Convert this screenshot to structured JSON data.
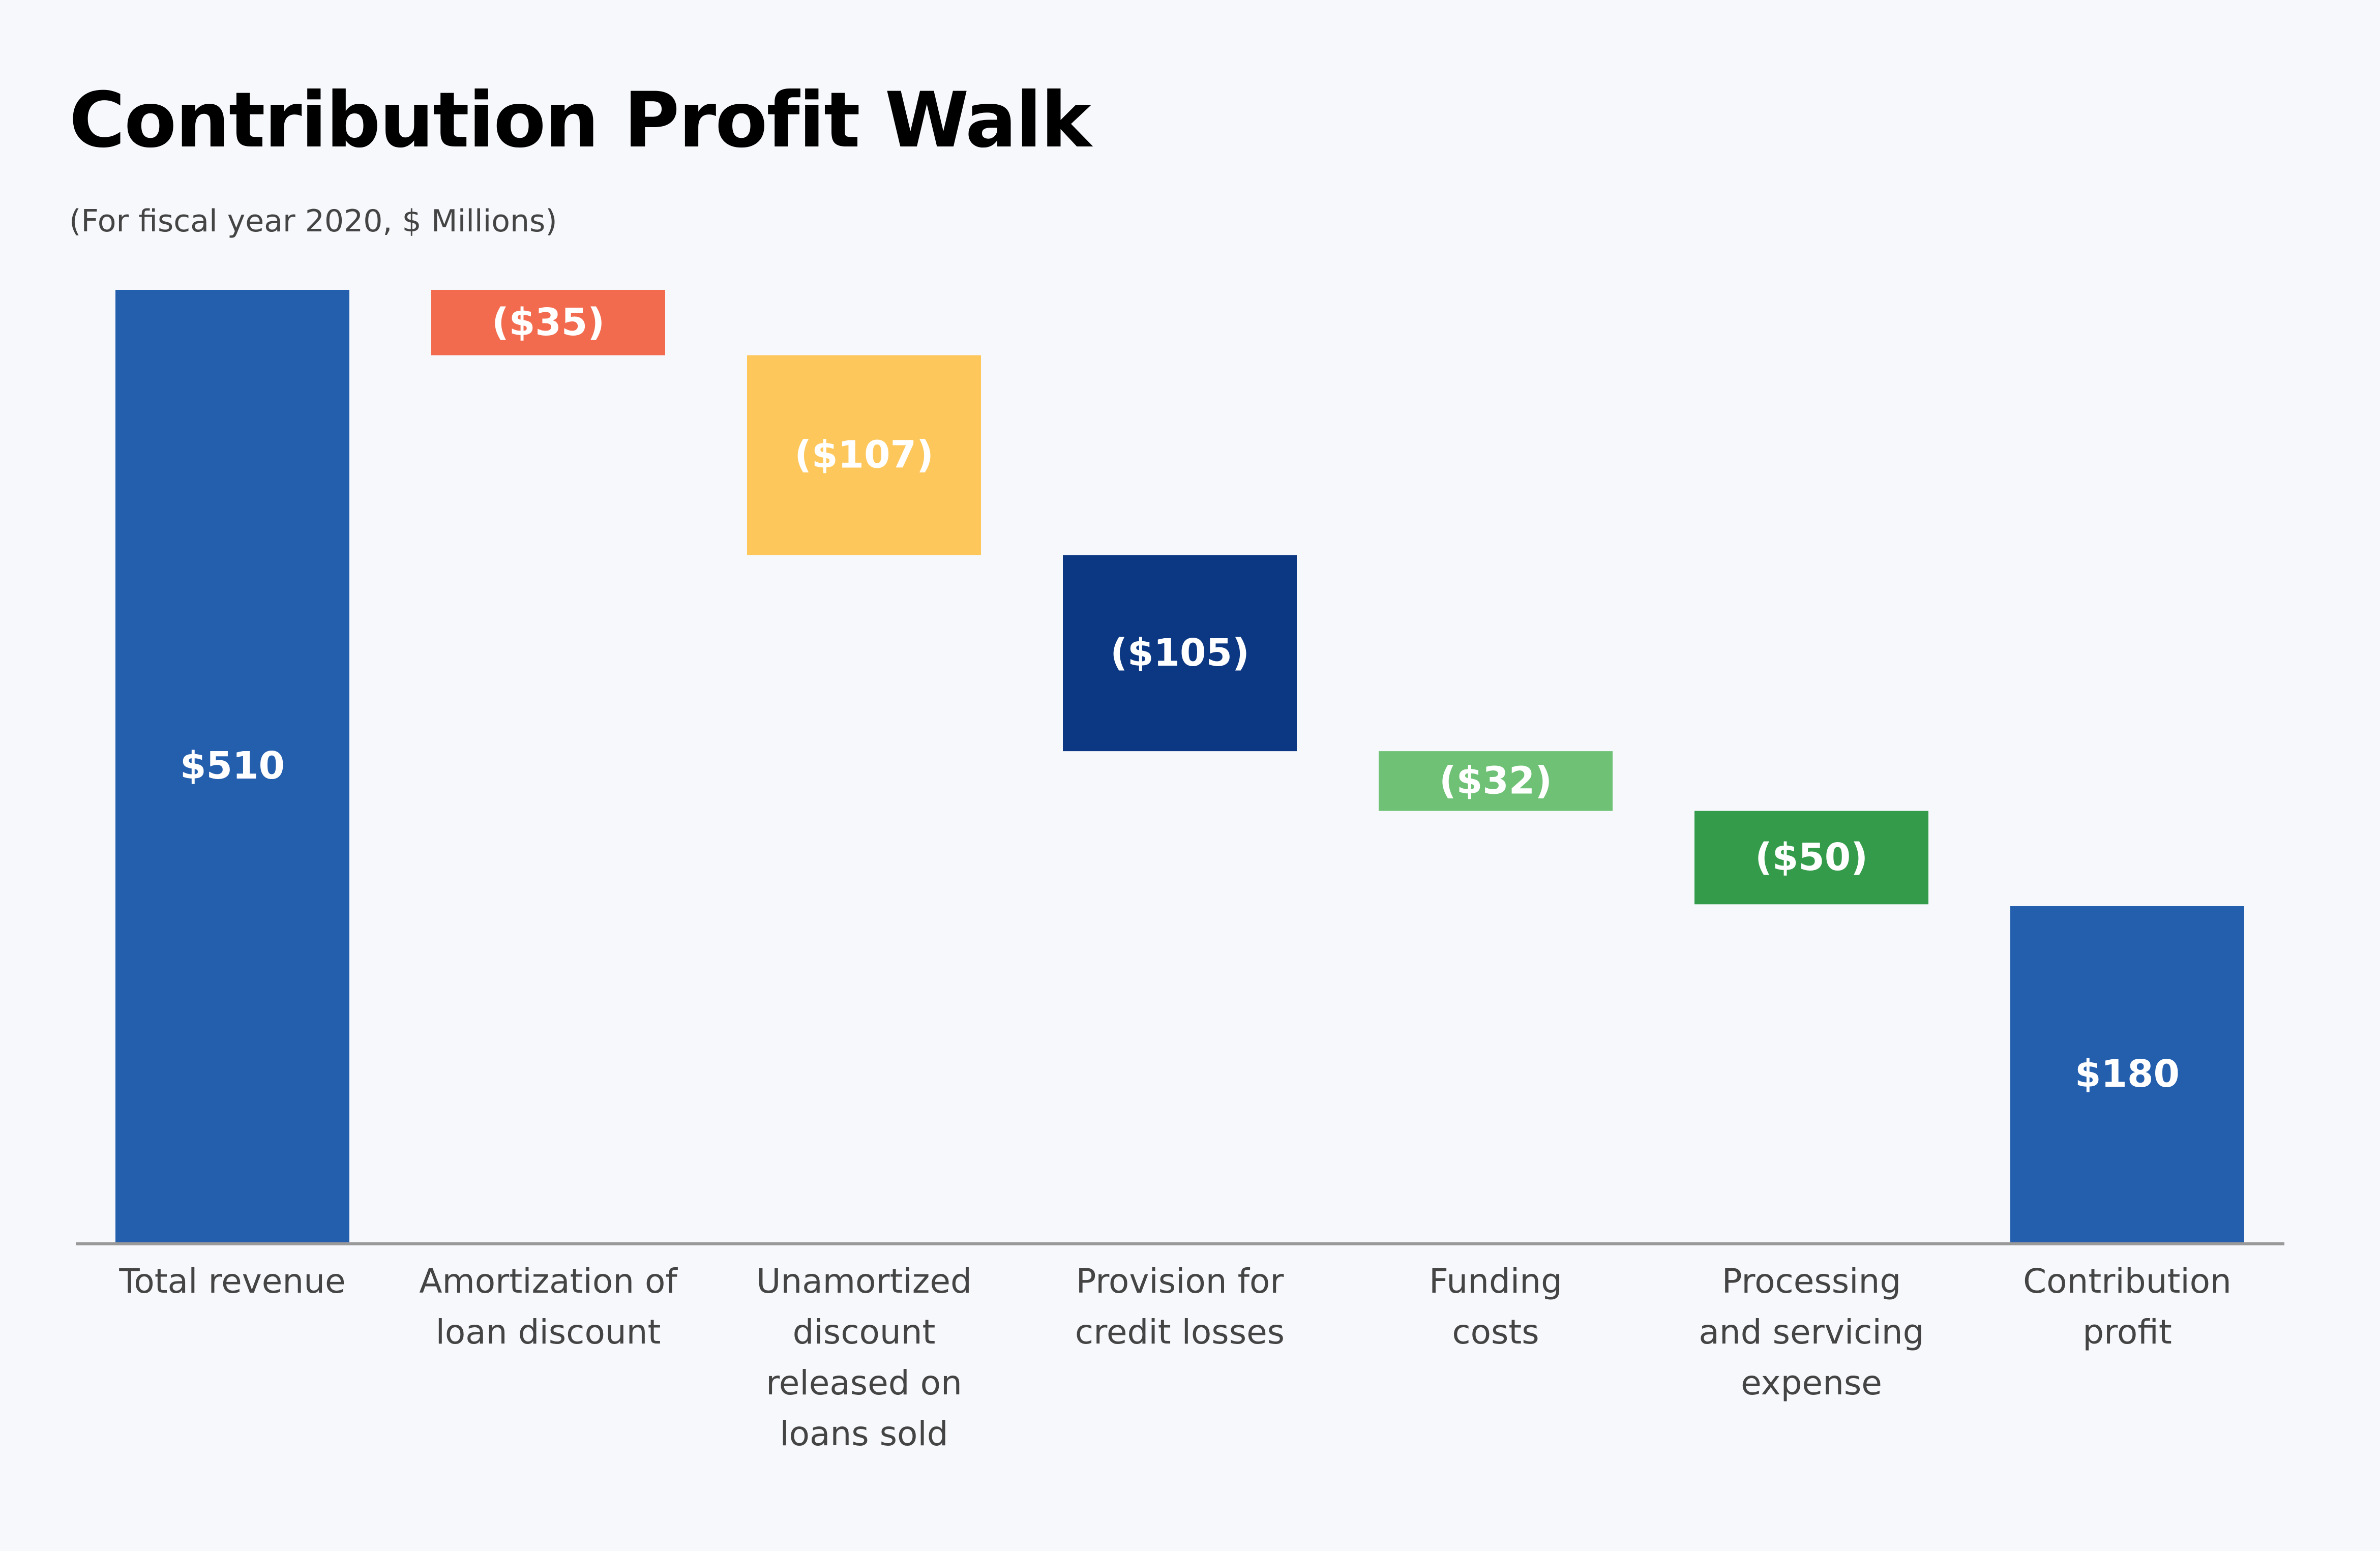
{
  "chart_data": {
    "type": "waterfall",
    "title": "Contribution Profit Walk",
    "subtitle": "(For fiscal year 2020,  $ Millions)",
    "categories": [
      "Total revenue",
      "Amortization of\nloan discount",
      "Unamortized\ndiscount\nreleased on\nloans sold",
      "Provision for\ncredit losses",
      "Funding\ncosts",
      "Processing\nand servicing\nexpense",
      "Contribution\nprofit"
    ],
    "values": [
      510,
      -35,
      -107,
      -105,
      -32,
      -50,
      180
    ],
    "value_labels": [
      "$510",
      "($35)",
      "($107)",
      "($105)",
      "($32)",
      "($50)",
      "$180"
    ],
    "colors": [
      "#245fae",
      "#f26b4f",
      "#fec75c",
      "#0c3883",
      "#6fc176",
      "#339b4a",
      "#245fae"
    ]
  }
}
